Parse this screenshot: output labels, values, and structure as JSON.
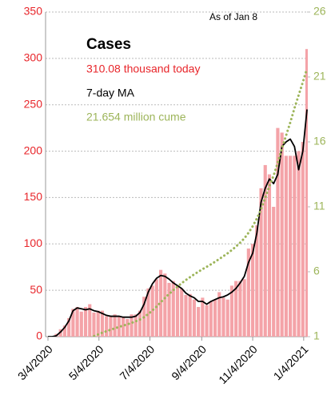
{
  "chart_data": {
    "type": "bar",
    "title": "Cases",
    "annotation": "As of Jan 8",
    "x": [
      "3/4/2020",
      "3/9/2020",
      "3/14/2020",
      "3/19/2020",
      "3/24/2020",
      "3/29/2020",
      "4/3/2020",
      "4/8/2020",
      "4/13/2020",
      "4/18/2020",
      "4/23/2020",
      "4/28/2020",
      "5/3/2020",
      "5/8/2020",
      "5/13/2020",
      "5/18/2020",
      "5/23/2020",
      "5/28/2020",
      "6/2/2020",
      "6/7/2020",
      "6/12/2020",
      "6/17/2020",
      "6/22/2020",
      "6/27/2020",
      "7/2/2020",
      "7/7/2020",
      "7/12/2020",
      "7/17/2020",
      "7/22/2020",
      "7/27/2020",
      "8/1/2020",
      "8/6/2020",
      "8/11/2020",
      "8/16/2020",
      "8/21/2020",
      "8/26/2020",
      "8/31/2020",
      "9/5/2020",
      "9/10/2020",
      "9/15/2020",
      "9/20/2020",
      "9/25/2020",
      "9/30/2020",
      "10/5/2020",
      "10/10/2020",
      "10/15/2020",
      "10/20/2020",
      "10/25/2020",
      "10/30/2020",
      "11/4/2020",
      "11/9/2020",
      "11/14/2020",
      "11/19/2020",
      "11/24/2020",
      "11/29/2020",
      "12/4/2020",
      "12/9/2020",
      "12/14/2020",
      "12/19/2020",
      "12/24/2020",
      "12/29/2020",
      "1/3/2021",
      "1/8/2021"
    ],
    "xlim": [
      "3/4/2020",
      "1/8/2021"
    ],
    "xticks": [
      "3/4/2020",
      "5/4/2020",
      "7/4/2020",
      "9/4/2020",
      "11/4/2020",
      "1/4/2021"
    ],
    "ylim": [
      0,
      350
    ],
    "yticks": [
      0,
      50,
      100,
      150,
      200,
      250,
      300,
      350
    ],
    "y2lim": [
      1,
      26
    ],
    "y2ticks": [
      1,
      6,
      11,
      16,
      21,
      26
    ],
    "grid": true,
    "series": [
      {
        "name": "310.08 thousand today",
        "type": "bar",
        "color": "#f4a3a8",
        "text_color": "#e8262b",
        "values": [
          0,
          0.5,
          3,
          8,
          12,
          20,
          30,
          32,
          27,
          32,
          35,
          26,
          28,
          28,
          22,
          22,
          24,
          22,
          21,
          19,
          24,
          24,
          28,
          43,
          52,
          55,
          62,
          72,
          68,
          58,
          60,
          55,
          52,
          45,
          46,
          40,
          32,
          42,
          34,
          38,
          40,
          48,
          42,
          40,
          55,
          60,
          60,
          62,
          95,
          100,
          120,
          160,
          185,
          175,
          140,
          225,
          220,
          195,
          195,
          195,
          200,
          210,
          310.08
        ]
      },
      {
        "name": "7-day MA",
        "type": "line",
        "color": "#000000",
        "text_color": "#000000",
        "values": [
          0,
          0,
          1,
          5,
          10,
          17,
          28,
          31,
          30,
          29,
          30,
          28,
          27,
          25,
          23,
          22,
          22,
          22,
          21,
          21,
          21,
          22,
          26,
          35,
          48,
          57,
          63,
          66,
          65,
          62,
          58,
          55,
          52,
          47,
          44,
          42,
          38,
          38,
          35,
          38,
          40,
          42,
          43,
          45,
          48,
          52,
          58,
          65,
          80,
          90,
          112,
          145,
          160,
          170,
          165,
          175,
          205,
          210,
          213,
          205,
          180,
          200,
          245
        ]
      },
      {
        "name": "21.654 million cume",
        "type": "dotted",
        "axis": "y2",
        "color": "#9db55a",
        "text_color": "#9db55a",
        "values": [
          0.0002,
          0.0007,
          0.003,
          0.014,
          0.055,
          0.14,
          0.28,
          0.43,
          0.58,
          0.74,
          0.9,
          1.04,
          1.17,
          1.31,
          1.42,
          1.53,
          1.64,
          1.75,
          1.85,
          1.95,
          2.06,
          2.18,
          2.31,
          2.5,
          2.74,
          3.02,
          3.32,
          3.65,
          3.98,
          4.29,
          4.58,
          4.86,
          5.12,
          5.36,
          5.58,
          5.8,
          6.0,
          6.2,
          6.38,
          6.57,
          6.77,
          6.98,
          7.2,
          7.42,
          7.67,
          7.94,
          8.24,
          8.57,
          9.0,
          9.5,
          10.1,
          10.8,
          11.7,
          12.6,
          13.4,
          14.4,
          15.5,
          16.5,
          17.5,
          18.6,
          19.6,
          20.6,
          21.654
        ]
      }
    ],
    "ytick_color": "#e8262b",
    "y2tick_color": "#9db55a"
  }
}
